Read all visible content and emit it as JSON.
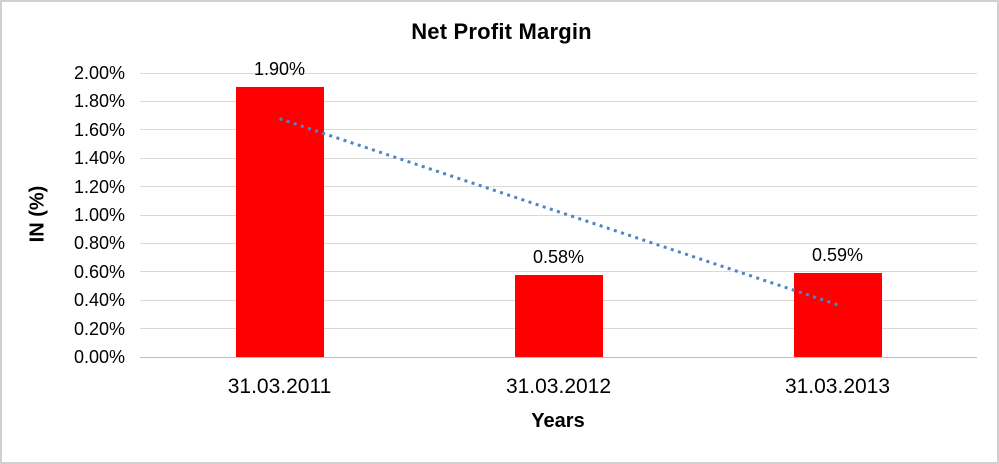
{
  "window": {
    "background": "#ffffff",
    "frame_border_color": "#d0d0d0"
  },
  "chart_data": {
    "type": "bar",
    "title": "Net Profit Margin",
    "xlabel": "Years",
    "ylabel": "IN (%)",
    "categories": [
      "31.03.2011",
      "31.03.2012",
      "31.03.2013"
    ],
    "values": [
      1.9,
      0.58,
      0.59
    ],
    "data_labels": [
      "1.90%",
      "0.58%",
      "0.59%"
    ],
    "y_ticks": [
      "2.00%",
      "1.80%",
      "1.60%",
      "1.40%",
      "1.20%",
      "1.00%",
      "0.80%",
      "0.60%",
      "0.40%",
      "0.20%",
      "0.00%"
    ],
    "ylim": [
      0,
      2.0
    ],
    "grid": true,
    "legend": "none",
    "bar_color": "#ff0000",
    "gridline_color": "#d9d9d9",
    "trendline": {
      "type": "linear",
      "style": "dotted",
      "color": "#4a86c8",
      "fitted_values": [
        1.678,
        1.023,
        0.368
      ]
    }
  }
}
